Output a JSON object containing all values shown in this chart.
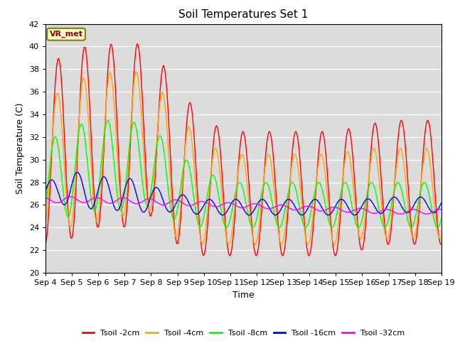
{
  "title": "Soil Temperatures Set 1",
  "xlabel": "Time",
  "ylabel": "Soil Temperature (C)",
  "ylim": [
    20,
    42
  ],
  "background_color": "#dcdcdc",
  "grid_color": "white",
  "vr_met_label": "VR_met",
  "legend_entries": [
    "Tsoil -2cm",
    "Tsoil -4cm",
    "Tsoil -8cm",
    "Tsoil -16cm",
    "Tsoil -32cm"
  ],
  "line_colors": [
    "red",
    "orange",
    "lime",
    "blue",
    "magenta"
  ],
  "xtick_labels": [
    "Sep 4",
    "Sep 5",
    "Sep 6",
    "Sep 7",
    "Sep 8",
    "Sep 9",
    "Sep 10",
    "Sep 11",
    "Sep 12",
    "Sep 13",
    "Sep 14",
    "Sep 15",
    "Sep 16",
    "Sep 17",
    "Sep 18",
    "Sep 19"
  ]
}
